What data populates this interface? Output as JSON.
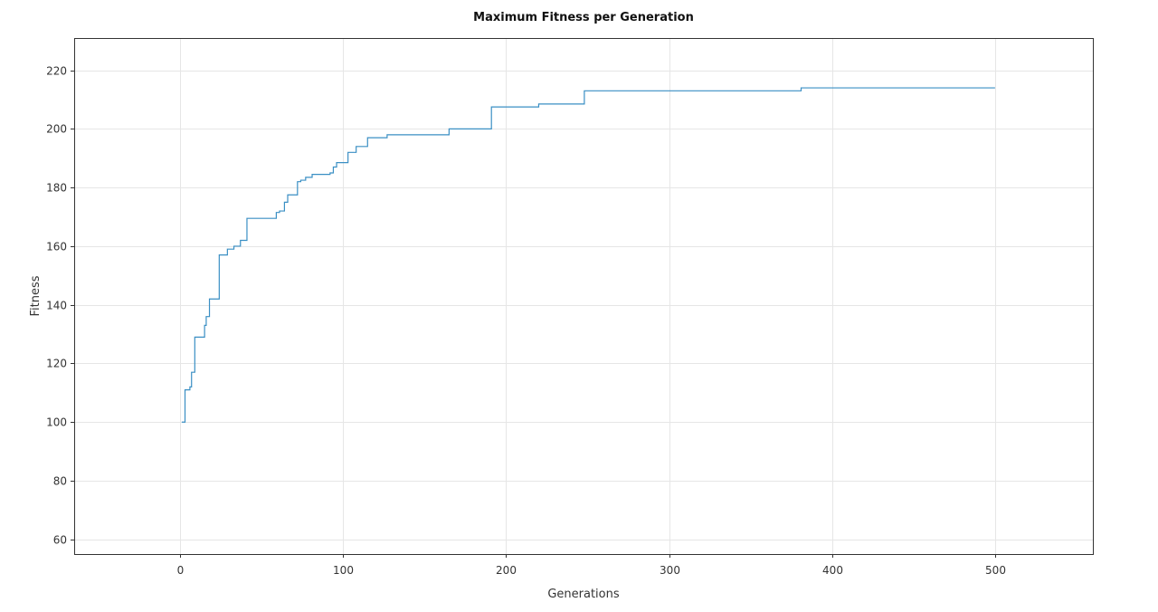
{
  "chart_data": {
    "type": "line",
    "title": "Maximum Fitness per Generation",
    "xlabel": "Generations",
    "ylabel": "Fitness",
    "xlim": [
      -65,
      560
    ],
    "ylim": [
      55,
      231
    ],
    "xticks": [
      0,
      100,
      200,
      300,
      400,
      500
    ],
    "yticks": [
      60,
      80,
      100,
      120,
      140,
      160,
      180,
      200,
      220
    ],
    "grid": true,
    "line_color": "#3a8fc4",
    "series": [
      {
        "step": true,
        "x": [
          1,
          3,
          6,
          7,
          9,
          15,
          16,
          18,
          24,
          29,
          33,
          37,
          41,
          59,
          61,
          64,
          66,
          72,
          74,
          77,
          81,
          92,
          94,
          96,
          103,
          108,
          115,
          127,
          165,
          191,
          220,
          248,
          381,
          500
        ],
        "y": [
          100,
          111,
          112,
          117,
          129,
          133,
          136,
          142,
          157,
          159,
          160,
          162,
          169.5,
          171.5,
          172,
          175,
          177.5,
          182,
          182.5,
          183.5,
          184.5,
          185,
          187,
          188.5,
          192,
          194,
          197,
          198,
          200,
          207.5,
          208.5,
          213,
          214,
          214
        ]
      }
    ]
  }
}
